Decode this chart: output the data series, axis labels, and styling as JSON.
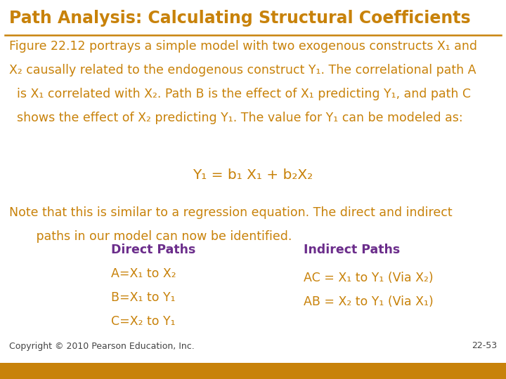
{
  "title": "Path Analysis: Calculating Structural Coefficients",
  "title_color": "#C8820A",
  "title_fontsize": 17,
  "header_line_color": "#C8820A",
  "bg_color": "#FFFFFF",
  "footer_bar_color": "#C8820A",
  "text_color": "#C8820A",
  "purple_color": "#6B2D8B",
  "body_fontsize": 12.5,
  "footer_bar_height": 0.042,
  "footer_left": "Copyright © 2010 Pearson Education, Inc.",
  "footer_right": "22-53",
  "footer_fontsize": 9
}
